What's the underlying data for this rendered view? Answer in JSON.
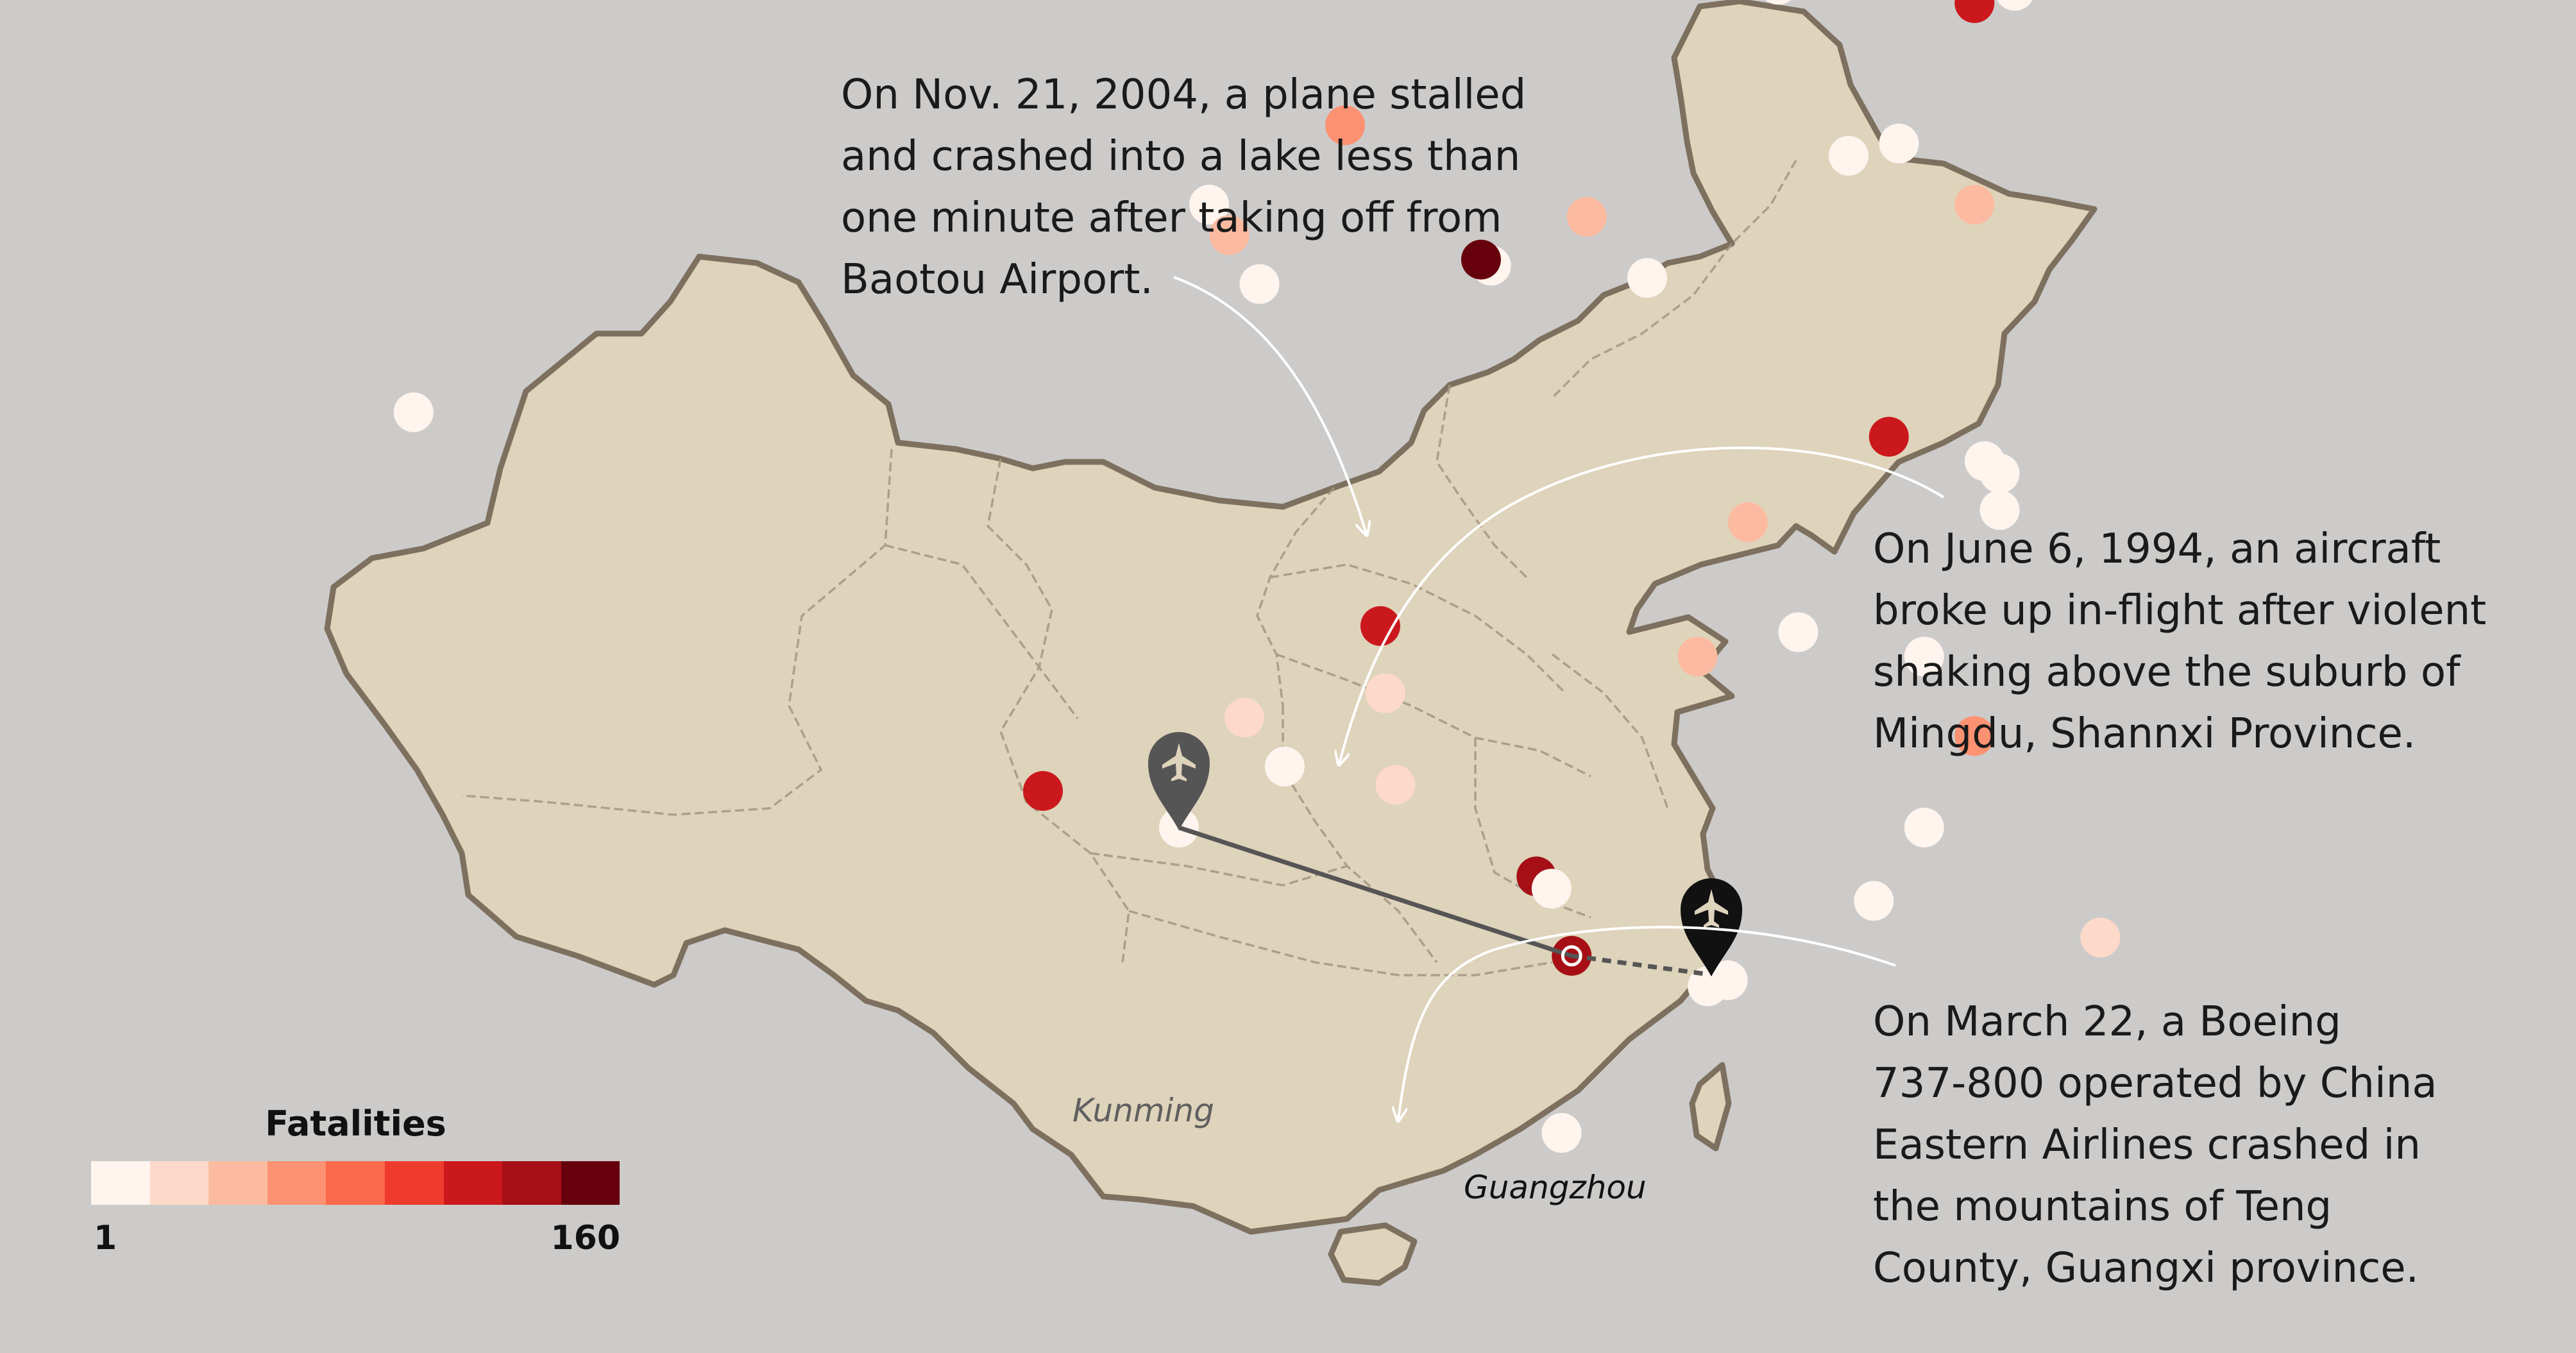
{
  "annotations": [
    {
      "id": "baotou",
      "lines": [
        "On Nov. 21, 2004, a plane stalled",
        "and crashed into a lake less than",
        "one minute after taking off from",
        "Baotou Airport."
      ]
    },
    {
      "id": "mingdu",
      "lines": [
        "On June 6, 1994, an aircraft",
        "broke up in-flight after violent",
        "shaking above the suburb of",
        "Mingdu, Shannxi Province."
      ]
    },
    {
      "id": "teng",
      "lines": [
        "On March 22, a Boeing",
        "737-800 operated by China",
        "Eastern Airlines crashed in",
        "the mountains of Teng",
        "County, Guangxi province."
      ]
    }
  ],
  "route": {
    "origin": {
      "label": "Kunming",
      "icon": "airplane-icon",
      "color": "#555555"
    },
    "destination": {
      "label": "Guangzhou",
      "icon": "airplane-icon",
      "color": "#111111"
    }
  },
  "legend": {
    "title": "Fatalities",
    "min_label": "1",
    "max_label": "160",
    "colors": [
      "#fff4ee",
      "#fdd9c9",
      "#fcbba1",
      "#fc9272",
      "#fb6a4a",
      "#ef3b2c",
      "#cb181d",
      "#a50f15",
      "#67000d"
    ]
  },
  "colors": {
    "background": "#cccbca",
    "land": "#ded3bb",
    "border": "#7d705e",
    "annotation_arrow": "#ffffff"
  },
  "crash_sites": [
    {
      "lon": 87.6,
      "lat": 43.8,
      "level": 0
    },
    {
      "lon": 82.0,
      "lat": 40.2,
      "level": 0
    },
    {
      "lon": 92.2,
      "lat": 42.0,
      "level": 1
    },
    {
      "lon": 87.5,
      "lat": 31.8,
      "level": 0
    },
    {
      "lon": 109.8,
      "lat": 40.6,
      "level": 2
    },
    {
      "lon": 106.0,
      "lat": 36.5,
      "level": 3
    },
    {
      "lon": 103.3,
      "lat": 35.2,
      "level": 0
    },
    {
      "lon": 103.7,
      "lat": 34.7,
      "level": 2
    },
    {
      "lon": 104.3,
      "lat": 33.9,
      "level": 0
    },
    {
      "lon": 108.9,
      "lat": 34.2,
      "level": 0
    },
    {
      "lon": 108.7,
      "lat": 34.3,
      "level": 8
    },
    {
      "lon": 110.8,
      "lat": 35.0,
      "level": 2
    },
    {
      "lon": 112.0,
      "lat": 34.0,
      "level": 0
    },
    {
      "lon": 114.6,
      "lat": 38.8,
      "level": 0
    },
    {
      "lon": 116.0,
      "lat": 36.0,
      "level": 0
    },
    {
      "lon": 117.0,
      "lat": 36.2,
      "level": 0
    },
    {
      "lon": 118.8,
      "lat": 41.8,
      "level": 0
    },
    {
      "lon": 119.3,
      "lat": 38.7,
      "level": 0
    },
    {
      "lon": 118.5,
      "lat": 38.5,
      "level": 6
    },
    {
      "lon": 118.5,
      "lat": 35.2,
      "level": 2
    },
    {
      "lon": 116.8,
      "lat": 31.4,
      "level": 6
    },
    {
      "lon": 118.7,
      "lat": 31.0,
      "level": 0
    },
    {
      "lon": 119.0,
      "lat": 30.8,
      "level": 0
    },
    {
      "lon": 119.0,
      "lat": 30.2,
      "level": 0
    },
    {
      "lon": 114.0,
      "lat": 30.0,
      "level": 2
    },
    {
      "lon": 115.0,
      "lat": 28.2,
      "level": 0
    },
    {
      "lon": 113.0,
      "lat": 27.8,
      "level": 2
    },
    {
      "lon": 117.5,
      "lat": 27.8,
      "level": 0
    },
    {
      "lon": 118.5,
      "lat": 26.5,
      "level": 3
    },
    {
      "lon": 117.5,
      "lat": 25.0,
      "level": 0
    },
    {
      "lon": 116.5,
      "lat": 23.8,
      "level": 0
    },
    {
      "lon": 121.0,
      "lat": 23.2,
      "level": 1
    },
    {
      "lon": 106.7,
      "lat": 28.3,
      "level": 6
    },
    {
      "lon": 106.8,
      "lat": 27.2,
      "level": 1
    },
    {
      "lon": 104.0,
      "lat": 26.8,
      "level": 1
    },
    {
      "lon": 104.8,
      "lat": 26.0,
      "level": 0
    },
    {
      "lon": 107.0,
      "lat": 25.7,
      "level": 1
    },
    {
      "lon": 102.7,
      "lat": 25.0,
      "level": 0
    },
    {
      "lon": 100.0,
      "lat": 25.6,
      "level": 6
    },
    {
      "lon": 109.8,
      "lat": 24.2,
      "level": 7
    },
    {
      "lon": 110.1,
      "lat": 24.0,
      "level": 0
    },
    {
      "lon": 110.5,
      "lat": 22.9,
      "level": 7
    },
    {
      "lon": 113.2,
      "lat": 22.4,
      "level": 0
    },
    {
      "lon": 113.6,
      "lat": 22.5,
      "level": 0
    },
    {
      "lon": 110.3,
      "lat": 20.0,
      "level": 0
    }
  ]
}
